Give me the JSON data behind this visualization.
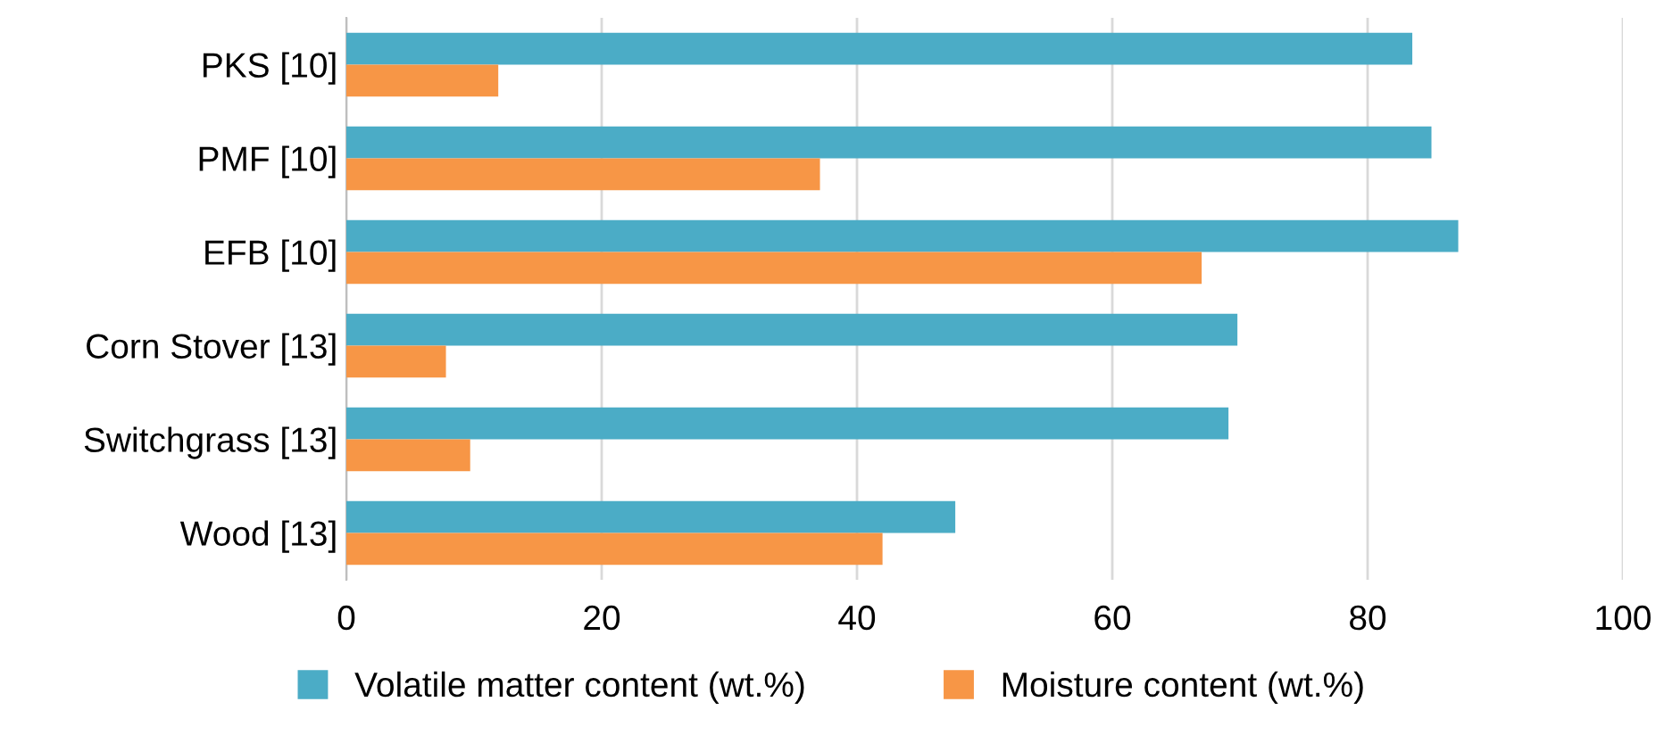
{
  "chart_data": {
    "type": "bar",
    "orientation": "horizontal",
    "categories": [
      "PKS [10]",
      "PMF [10]",
      "EFB [10]",
      "Corn Stover [13]",
      "Switchgrass [13]",
      "Wood [13]"
    ],
    "series": [
      {
        "name": "Volatile matter content (wt.%)",
        "color": "#4bacc6",
        "values": [
          83.5,
          85.0,
          87.1,
          69.8,
          69.1,
          47.7
        ]
      },
      {
        "name": "Moisture content (wt.%)",
        "color": "#f79646",
        "values": [
          11.9,
          37.1,
          67.0,
          7.8,
          9.7,
          42.0
        ]
      }
    ],
    "xlim": [
      0,
      100
    ],
    "xticks": [
      0,
      20,
      40,
      60,
      80,
      100
    ],
    "grid": "x",
    "legend": "bottom"
  }
}
